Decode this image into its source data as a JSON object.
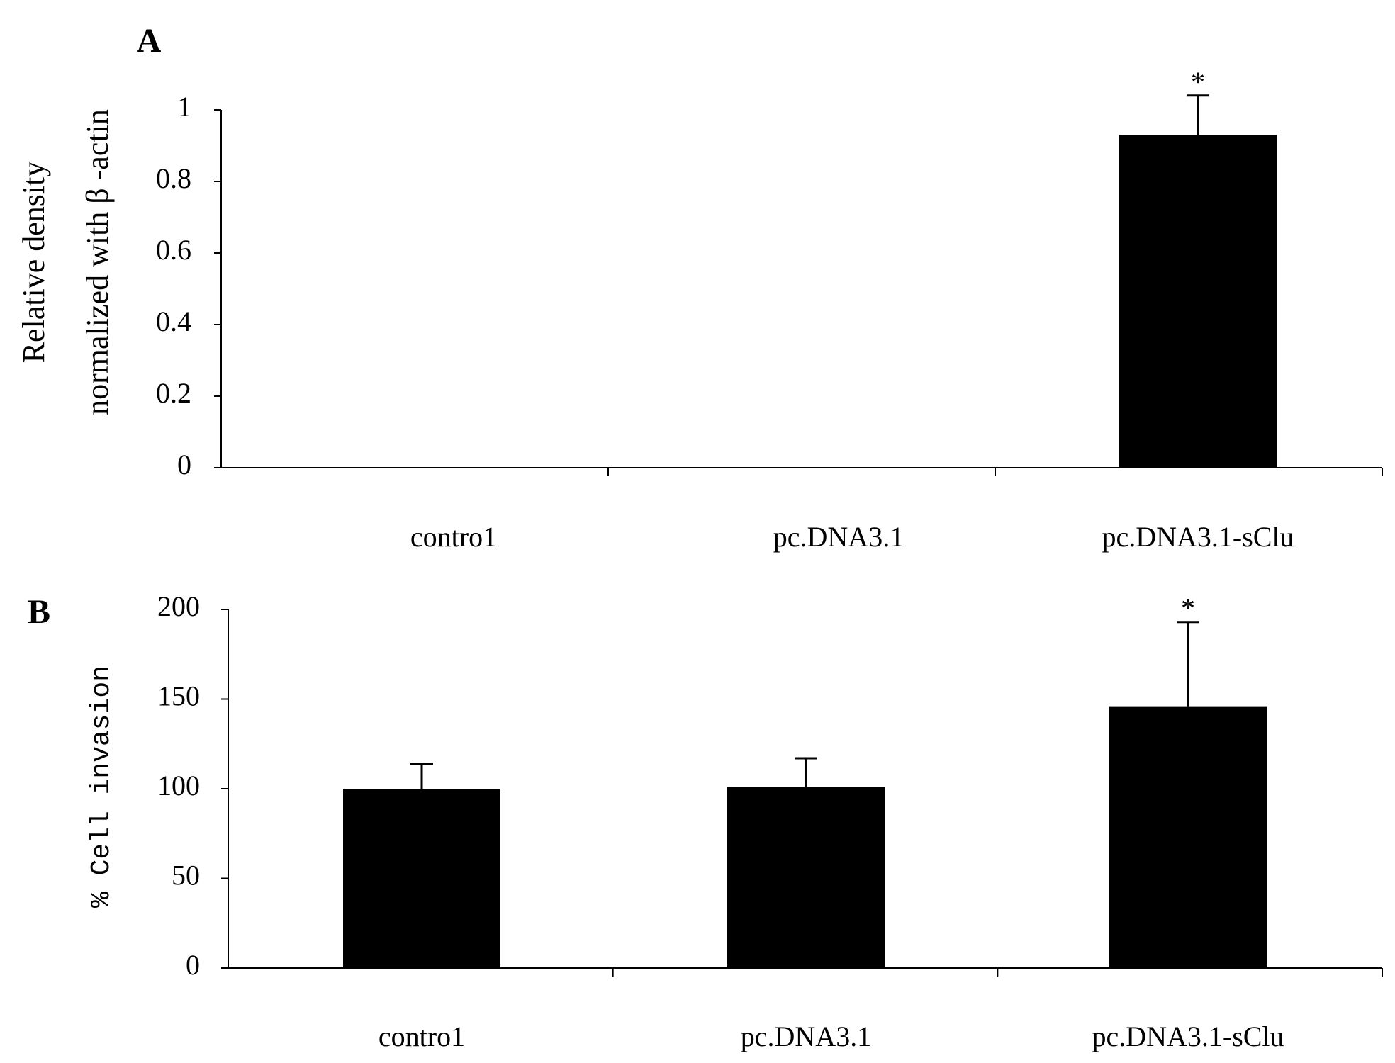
{
  "chart_data": [
    {
      "panel_label": "A",
      "type": "bar",
      "categories": [
        "contro1",
        "pc.DNA3.1",
        "pc.DNA3.1-sClu"
      ],
      "values": [
        0,
        0,
        0.93
      ],
      "errors": [
        null,
        null,
        0.11
      ],
      "significance": [
        "",
        "",
        "*"
      ],
      "ylabel_lines": [
        "Relative density",
        "normalized with  β -actin"
      ],
      "xlabel": "",
      "ylim": [
        0,
        1
      ],
      "yticks": [
        0,
        0.2,
        0.4,
        0.6,
        0.8,
        1
      ],
      "ytick_labels": [
        "0",
        "0.2",
        "0.4",
        "0.6",
        "0.8",
        "1"
      ],
      "grid": false,
      "bar_color": "#000000"
    },
    {
      "panel_label": "B",
      "type": "bar",
      "categories": [
        "contro1",
        "pc.DNA3.1",
        "pc.DNA3.1-sClu"
      ],
      "values": [
        100,
        101,
        146
      ],
      "errors": [
        14,
        16,
        47
      ],
      "significance": [
        "",
        "",
        "*"
      ],
      "ylabel_lines": [
        "% Cell invasion"
      ],
      "xlabel": "",
      "ylim": [
        0,
        200
      ],
      "yticks": [
        0,
        50,
        100,
        150,
        200
      ],
      "ytick_labels": [
        "0",
        "50",
        "100",
        "150",
        "200"
      ],
      "grid": false,
      "bar_color": "#000000"
    }
  ]
}
